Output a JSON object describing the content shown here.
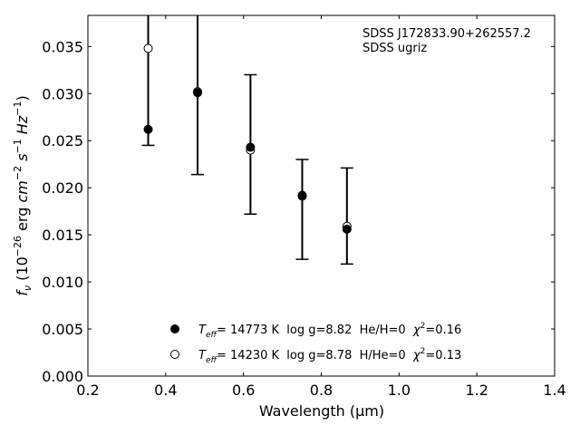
{
  "chart_data": {
    "type": "scatter",
    "xlabel": "Wavelength",
    "xlabel_unit": "(μm)",
    "ylabel_parts": {
      "f": "f",
      "nu": "ν",
      "open": " (10",
      "exp26": "−26",
      "erg": " erg ",
      "cm": "cm",
      "expm2": "−2",
      "s": " s",
      "expm1": "−1",
      "hz": " Hz",
      "expm1b": "−1",
      "close": ")"
    },
    "xlim": [
      0.2,
      1.4
    ],
    "ylim": [
      0.0,
      0.0383
    ],
    "xticks": [
      {
        "value": 0.2,
        "label": "0.2"
      },
      {
        "value": 0.4,
        "label": "0.4"
      },
      {
        "value": 0.6,
        "label": "0.6"
      },
      {
        "value": 0.8,
        "label": "0.8"
      },
      {
        "value": 1.0,
        "label": "1.0"
      },
      {
        "value": 1.2,
        "label": "1.2"
      },
      {
        "value": 1.4,
        "label": "1.4"
      }
    ],
    "yticks": [
      {
        "value": 0.0,
        "label": "0.000"
      },
      {
        "value": 0.005,
        "label": "0.005"
      },
      {
        "value": 0.01,
        "label": "0.010"
      },
      {
        "value": 0.015,
        "label": "0.015"
      },
      {
        "value": 0.02,
        "label": "0.020"
      },
      {
        "value": 0.025,
        "label": "0.025"
      },
      {
        "value": 0.03,
        "label": "0.030"
      },
      {
        "value": 0.035,
        "label": "0.035"
      }
    ],
    "annotation": [
      "SDSS J172833.90+262557.2",
      "SDSS ugriz"
    ],
    "observed": [
      {
        "x": 0.355,
        "y": 0.0262,
        "ylow": 0.0245,
        "yhigh": 0.0383,
        "cap_low": true,
        "cap_high": false
      },
      {
        "x": 0.482,
        "y": 0.0301,
        "ylow": 0.0214,
        "yhigh": 0.0383,
        "cap_low": true,
        "cap_high": false
      },
      {
        "x": 0.618,
        "y": 0.0243,
        "ylow": 0.0172,
        "yhigh": 0.032,
        "cap_low": true,
        "cap_high": true
      },
      {
        "x": 0.751,
        "y": 0.0192,
        "ylow": 0.0124,
        "yhigh": 0.023,
        "cap_low": true,
        "cap_high": true
      },
      {
        "x": 0.866,
        "y": 0.0156,
        "ylow": 0.0119,
        "yhigh": 0.0221,
        "cap_low": true,
        "cap_high": true
      }
    ],
    "series": [
      {
        "marker": "filled",
        "label_parts": {
          "t": "T",
          "sub": "eff",
          "rest": "= 14773 K  log g=8.82  He/H=0  ",
          "chi": "χ",
          "sup": "2",
          "val": "=0.16"
        },
        "x": [
          0.355,
          0.482,
          0.618,
          0.751,
          0.866
        ],
        "y": [
          0.0262,
          0.0301,
          0.0243,
          0.0192,
          0.0156
        ]
      },
      {
        "marker": "open",
        "label_parts": {
          "t": "T",
          "sub": "eff",
          "rest": "= 14230 K  log g=8.78  H/He=0  ",
          "chi": "χ",
          "sup": "2",
          "val": "=0.13"
        },
        "x": [
          0.355,
          0.482,
          0.618,
          0.751,
          0.866
        ],
        "y": [
          0.0348,
          0.0302,
          0.024,
          0.0191,
          0.0159
        ]
      }
    ],
    "legend": "lower-center",
    "grid": false,
    "colors": {
      "marker": "#000000",
      "axis": "#000000",
      "background": "#ffffff"
    }
  }
}
